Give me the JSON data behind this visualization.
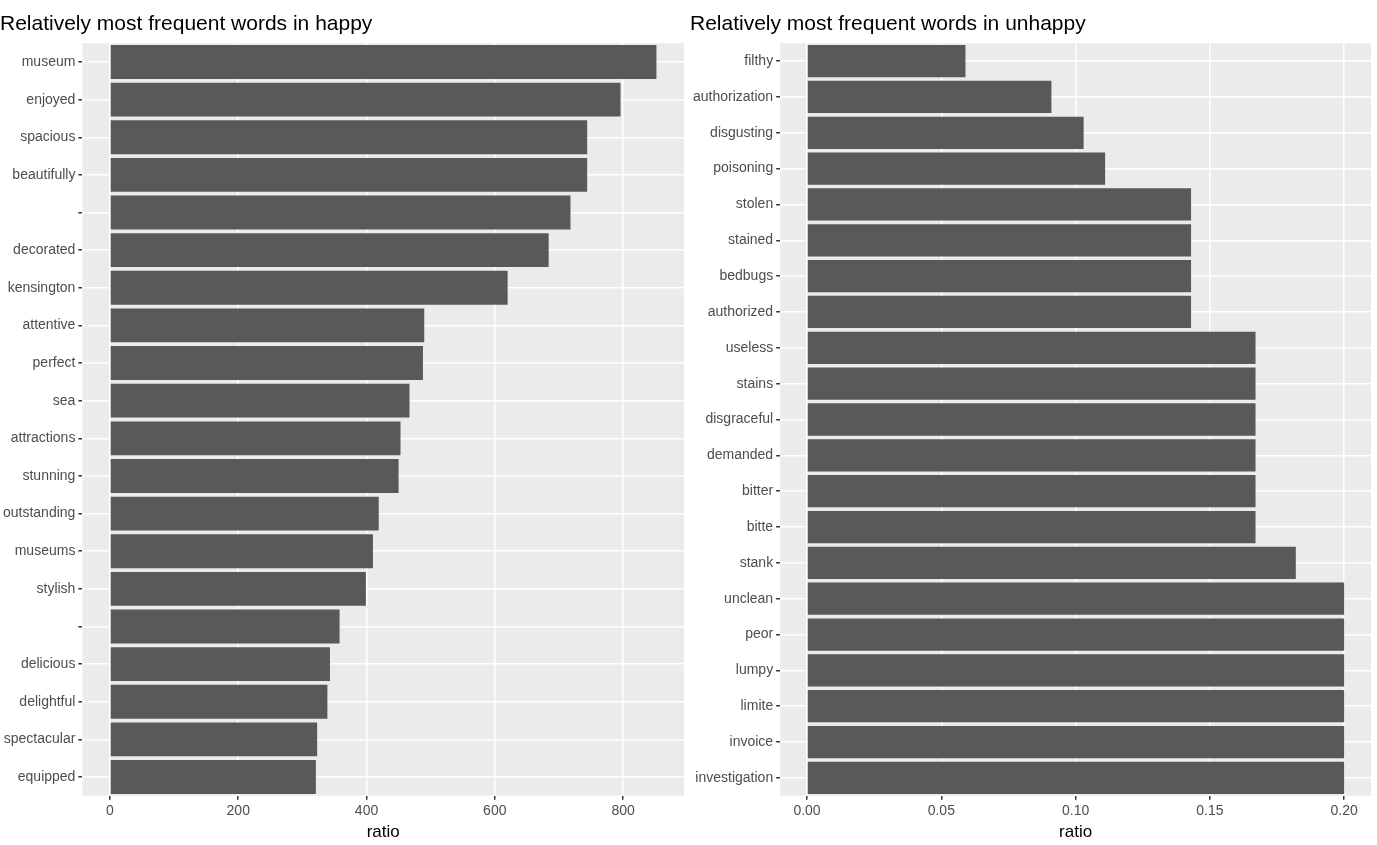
{
  "chart_data": [
    {
      "type": "bar",
      "orientation": "horizontal",
      "title": "Relatively most frequent words in happy",
      "xlabel": "ratio",
      "categories": [
        "museum",
        "enjoyed",
        "spacious",
        "beautifully",
        null,
        "decorated",
        "kensington",
        "attentive",
        "perfect",
        "sea",
        "attractions",
        "stunning",
        "outstanding",
        "museums",
        "stylish",
        null,
        "delicious",
        "delightful",
        "spectacular",
        "equipped"
      ],
      "values": [
        852,
        796,
        744,
        744,
        718,
        684,
        620,
        490,
        488,
        467,
        453,
        450,
        419,
        410,
        399,
        358,
        343,
        339,
        323,
        321
      ],
      "color": "#595959",
      "xlim": [
        -43,
        895
      ],
      "xticks": [
        0,
        200,
        400,
        600,
        800
      ],
      "grid": true,
      "legend": false
    },
    {
      "type": "bar",
      "orientation": "horizontal",
      "title": "Relatively most frequent words in unhappy",
      "xlabel": "ratio",
      "categories": [
        "filthy",
        "authorization",
        "disgusting",
        "poisoning",
        "stolen",
        "stained",
        "bedbugs",
        "authorized",
        "useless",
        "stains",
        "disgraceful",
        "demanded",
        "bitter",
        "bitte",
        "stank",
        "unclean",
        "peor",
        "lumpy",
        "limite",
        "invoice",
        "investigation"
      ],
      "values": [
        0.059,
        0.091,
        0.103,
        0.111,
        0.143,
        0.143,
        0.143,
        0.143,
        0.167,
        0.167,
        0.167,
        0.167,
        0.167,
        0.167,
        0.182,
        0.2,
        0.2,
        0.2,
        0.2,
        0.2,
        0.2
      ],
      "color": "#595959",
      "xlim": [
        -0.01,
        0.21
      ],
      "xticks": [
        {
          "value": 0,
          "label": "0.00"
        },
        {
          "value": 0.05,
          "label": "0.05"
        },
        {
          "value": 0.1,
          "label": "0.10"
        },
        {
          "value": 0.15,
          "label": "0.15"
        },
        {
          "value": 0.2,
          "label": "0.20"
        }
      ],
      "grid": true,
      "legend": false
    }
  ]
}
